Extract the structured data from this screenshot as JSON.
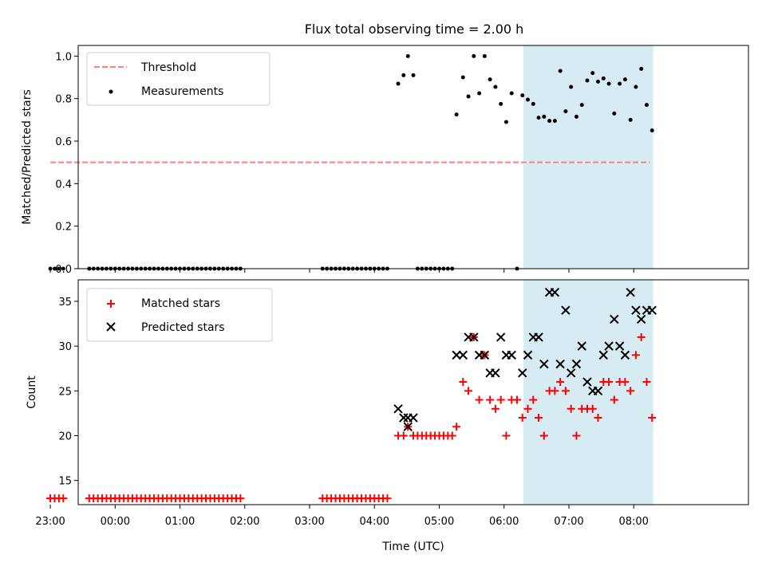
{
  "chart_data": [
    {
      "type": "scatter",
      "title": "Flux total observing time = 2.00 h",
      "ylabel": "Matched/Predicted stars",
      "xlabel": "",
      "ylim": [
        0,
        1.05
      ],
      "yticks": [
        "0.0",
        "0.2",
        "0.4",
        "0.6",
        "0.8",
        "1.0"
      ],
      "highlight_band": {
        "x_start": "06:18",
        "x_end": "08:18",
        "color": "#add8e6"
      },
      "legend": {
        "position": "top-left",
        "entries": [
          "Threshold",
          "Measurements"
        ]
      },
      "series": [
        {
          "name": "Threshold",
          "style": "dashed-line",
          "color": "#ff7f7f",
          "points": [
            [
              "23:00",
              0.5
            ],
            [
              "08:15",
              0.5
            ]
          ]
        },
        {
          "name": "Measurements",
          "style": "dot",
          "color": "#000000",
          "points": [
            [
              "23:00",
              0
            ],
            [
              "23:04",
              0
            ],
            [
              "23:08",
              0
            ],
            [
              "23:12",
              0
            ],
            [
              "23:36",
              0
            ],
            [
              "23:40",
              0
            ],
            [
              "23:44",
              0
            ],
            [
              "23:48",
              0
            ],
            [
              "23:52",
              0
            ],
            [
              "23:56",
              0
            ],
            [
              "00:00",
              0
            ],
            [
              "00:04",
              0
            ],
            [
              "00:08",
              0
            ],
            [
              "00:12",
              0
            ],
            [
              "00:16",
              0
            ],
            [
              "00:20",
              0
            ],
            [
              "00:24",
              0
            ],
            [
              "00:28",
              0
            ],
            [
              "00:32",
              0
            ],
            [
              "00:36",
              0
            ],
            [
              "00:40",
              0
            ],
            [
              "00:44",
              0
            ],
            [
              "00:48",
              0
            ],
            [
              "00:52",
              0
            ],
            [
              "00:56",
              0
            ],
            [
              "01:00",
              0
            ],
            [
              "01:04",
              0
            ],
            [
              "01:08",
              0
            ],
            [
              "01:12",
              0
            ],
            [
              "01:16",
              0
            ],
            [
              "01:20",
              0
            ],
            [
              "01:24",
              0
            ],
            [
              "01:28",
              0
            ],
            [
              "01:32",
              0
            ],
            [
              "01:36",
              0
            ],
            [
              "01:40",
              0
            ],
            [
              "01:44",
              0
            ],
            [
              "01:48",
              0
            ],
            [
              "01:52",
              0
            ],
            [
              "01:56",
              0
            ],
            [
              "03:12",
              0
            ],
            [
              "03:16",
              0
            ],
            [
              "03:20",
              0
            ],
            [
              "03:24",
              0
            ],
            [
              "03:28",
              0
            ],
            [
              "03:32",
              0
            ],
            [
              "03:36",
              0
            ],
            [
              "03:40",
              0
            ],
            [
              "03:44",
              0
            ],
            [
              "03:48",
              0
            ],
            [
              "03:52",
              0
            ],
            [
              "03:56",
              0
            ],
            [
              "04:00",
              0
            ],
            [
              "04:04",
              0
            ],
            [
              "04:08",
              0
            ],
            [
              "04:12",
              0
            ],
            [
              "04:22",
              0.87
            ],
            [
              "04:27",
              0.91
            ],
            [
              "04:31",
              1.0
            ],
            [
              "04:36",
              0.91
            ],
            [
              "04:40",
              0
            ],
            [
              "04:44",
              0
            ],
            [
              "04:48",
              0
            ],
            [
              "04:52",
              0
            ],
            [
              "04:56",
              0
            ],
            [
              "05:00",
              0
            ],
            [
              "05:04",
              0
            ],
            [
              "05:08",
              0
            ],
            [
              "05:12",
              0
            ],
            [
              "05:16",
              0.725
            ],
            [
              "05:22",
              0.9
            ],
            [
              "05:27",
              0.81
            ],
            [
              "05:32",
              1.0
            ],
            [
              "05:37",
              0.825
            ],
            [
              "05:42",
              1.0
            ],
            [
              "05:47",
              0.89
            ],
            [
              "05:52",
              0.855
            ],
            [
              "05:57",
              0.775
            ],
            [
              "06:02",
              0.69
            ],
            [
              "06:07",
              0.825
            ],
            [
              "06:12",
              0
            ],
            [
              "06:17",
              0.815
            ],
            [
              "06:22",
              0.795
            ],
            [
              "06:27",
              0.775
            ],
            [
              "06:32",
              0.71
            ],
            [
              "06:37",
              0.715
            ],
            [
              "06:42",
              0.695
            ],
            [
              "06:47",
              0.695
            ],
            [
              "06:52",
              0.93
            ],
            [
              "06:57",
              0.74
            ],
            [
              "07:02",
              0.855
            ],
            [
              "07:07",
              0.715
            ],
            [
              "07:12",
              0.77
            ],
            [
              "07:17",
              0.885
            ],
            [
              "07:22",
              0.92
            ],
            [
              "07:27",
              0.88
            ],
            [
              "07:32",
              0.895
            ],
            [
              "07:37",
              0.87
            ],
            [
              "07:42",
              0.73
            ],
            [
              "07:47",
              0.87
            ],
            [
              "07:52",
              0.89
            ],
            [
              "07:57",
              0.7
            ],
            [
              "08:02",
              0.855
            ],
            [
              "08:07",
              0.94
            ],
            [
              "08:12",
              0.77
            ],
            [
              "08:17",
              0.65
            ]
          ]
        }
      ]
    },
    {
      "type": "scatter",
      "title": "",
      "ylabel": "Count",
      "xlabel": "Time (UTC)",
      "ylim": [
        12.3,
        37.4
      ],
      "yticks": [
        "15",
        "20",
        "25",
        "30",
        "35"
      ],
      "xticks": [
        "23:00",
        "00:00",
        "01:00",
        "02:00",
        "03:00",
        "04:00",
        "05:00",
        "06:00",
        "07:00",
        "08:00"
      ],
      "highlight_band": {
        "x_start": "06:18",
        "x_end": "08:18",
        "color": "#add8e6"
      },
      "legend": {
        "position": "top-left",
        "entries": [
          "Matched stars",
          "Predicted stars"
        ]
      },
      "series": [
        {
          "name": "Matched stars",
          "style": "plus",
          "color": "#ff0000",
          "points": [
            [
              "23:00",
              13
            ],
            [
              "23:04",
              13
            ],
            [
              "23:08",
              13
            ],
            [
              "23:12",
              13
            ],
            [
              "23:36",
              13
            ],
            [
              "23:40",
              13
            ],
            [
              "23:44",
              13
            ],
            [
              "23:48",
              13
            ],
            [
              "23:52",
              13
            ],
            [
              "23:56",
              13
            ],
            [
              "00:00",
              13
            ],
            [
              "00:04",
              13
            ],
            [
              "00:08",
              13
            ],
            [
              "00:12",
              13
            ],
            [
              "00:16",
              13
            ],
            [
              "00:20",
              13
            ],
            [
              "00:24",
              13
            ],
            [
              "00:28",
              13
            ],
            [
              "00:32",
              13
            ],
            [
              "00:36",
              13
            ],
            [
              "00:40",
              13
            ],
            [
              "00:44",
              13
            ],
            [
              "00:48",
              13
            ],
            [
              "00:52",
              13
            ],
            [
              "00:56",
              13
            ],
            [
              "01:00",
              13
            ],
            [
              "01:04",
              13
            ],
            [
              "01:08",
              13
            ],
            [
              "01:12",
              13
            ],
            [
              "01:16",
              13
            ],
            [
              "01:20",
              13
            ],
            [
              "01:24",
              13
            ],
            [
              "01:28",
              13
            ],
            [
              "01:32",
              13
            ],
            [
              "01:36",
              13
            ],
            [
              "01:40",
              13
            ],
            [
              "01:44",
              13
            ],
            [
              "01:48",
              13
            ],
            [
              "01:52",
              13
            ],
            [
              "01:56",
              13
            ],
            [
              "03:12",
              13
            ],
            [
              "03:16",
              13
            ],
            [
              "03:20",
              13
            ],
            [
              "03:24",
              13
            ],
            [
              "03:28",
              13
            ],
            [
              "03:32",
              13
            ],
            [
              "03:36",
              13
            ],
            [
              "03:40",
              13
            ],
            [
              "03:44",
              13
            ],
            [
              "03:48",
              13
            ],
            [
              "03:52",
              13
            ],
            [
              "03:56",
              13
            ],
            [
              "04:00",
              13
            ],
            [
              "04:04",
              13
            ],
            [
              "04:08",
              13
            ],
            [
              "04:12",
              13
            ],
            [
              "04:22",
              20
            ],
            [
              "04:27",
              20
            ],
            [
              "04:31",
              21
            ],
            [
              "04:36",
              20
            ],
            [
              "04:40",
              20
            ],
            [
              "04:44",
              20
            ],
            [
              "04:48",
              20
            ],
            [
              "04:52",
              20
            ],
            [
              "04:56",
              20
            ],
            [
              "05:00",
              20
            ],
            [
              "05:04",
              20
            ],
            [
              "05:08",
              20
            ],
            [
              "05:12",
              20
            ],
            [
              "05:16",
              21
            ],
            [
              "05:22",
              26
            ],
            [
              "05:27",
              25
            ],
            [
              "05:32",
              31
            ],
            [
              "05:37",
              24
            ],
            [
              "05:42",
              29
            ],
            [
              "05:47",
              24
            ],
            [
              "05:52",
              23
            ],
            [
              "05:57",
              24
            ],
            [
              "06:02",
              20
            ],
            [
              "06:07",
              24
            ],
            [
              "06:12",
              24
            ],
            [
              "06:17",
              22
            ],
            [
              "06:22",
              23
            ],
            [
              "06:27",
              24
            ],
            [
              "06:32",
              22
            ],
            [
              "06:37",
              20
            ],
            [
              "06:42",
              25
            ],
            [
              "06:47",
              25
            ],
            [
              "06:52",
              26
            ],
            [
              "06:57",
              25
            ],
            [
              "07:02",
              23
            ],
            [
              "07:07",
              20
            ],
            [
              "07:12",
              23
            ],
            [
              "07:17",
              23
            ],
            [
              "07:22",
              23
            ],
            [
              "07:27",
              22
            ],
            [
              "07:32",
              26
            ],
            [
              "07:37",
              26
            ],
            [
              "07:42",
              24
            ],
            [
              "07:47",
              26
            ],
            [
              "07:52",
              26
            ],
            [
              "07:57",
              25
            ],
            [
              "08:02",
              29
            ],
            [
              "08:07",
              31
            ],
            [
              "08:12",
              26
            ],
            [
              "08:17",
              22
            ]
          ]
        },
        {
          "name": "Predicted stars",
          "style": "x",
          "color": "#000000",
          "points": [
            [
              "04:22",
              23
            ],
            [
              "04:27",
              22
            ],
            [
              "04:31",
              21
            ],
            [
              "04:31",
              22
            ],
            [
              "04:36",
              22
            ],
            [
              "05:16",
              29
            ],
            [
              "05:22",
              29
            ],
            [
              "05:27",
              31
            ],
            [
              "05:32",
              31
            ],
            [
              "05:37",
              29
            ],
            [
              "05:42",
              29
            ],
            [
              "05:47",
              27
            ],
            [
              "05:52",
              27
            ],
            [
              "05:57",
              31
            ],
            [
              "06:02",
              29
            ],
            [
              "06:07",
              29
            ],
            [
              "06:17",
              27
            ],
            [
              "06:22",
              29
            ],
            [
              "06:27",
              31
            ],
            [
              "06:32",
              31
            ],
            [
              "06:37",
              28
            ],
            [
              "06:42",
              36
            ],
            [
              "06:47",
              36
            ],
            [
              "06:52",
              28
            ],
            [
              "06:57",
              34
            ],
            [
              "07:02",
              27
            ],
            [
              "07:07",
              28
            ],
            [
              "07:12",
              30
            ],
            [
              "07:17",
              26
            ],
            [
              "07:22",
              25
            ],
            [
              "07:27",
              25
            ],
            [
              "07:32",
              29
            ],
            [
              "07:37",
              30
            ],
            [
              "07:42",
              33
            ],
            [
              "07:47",
              30
            ],
            [
              "07:52",
              29
            ],
            [
              "07:57",
              36
            ],
            [
              "08:02",
              34
            ],
            [
              "08:07",
              33
            ],
            [
              "08:12",
              34
            ],
            [
              "08:17",
              34
            ]
          ]
        }
      ]
    }
  ]
}
